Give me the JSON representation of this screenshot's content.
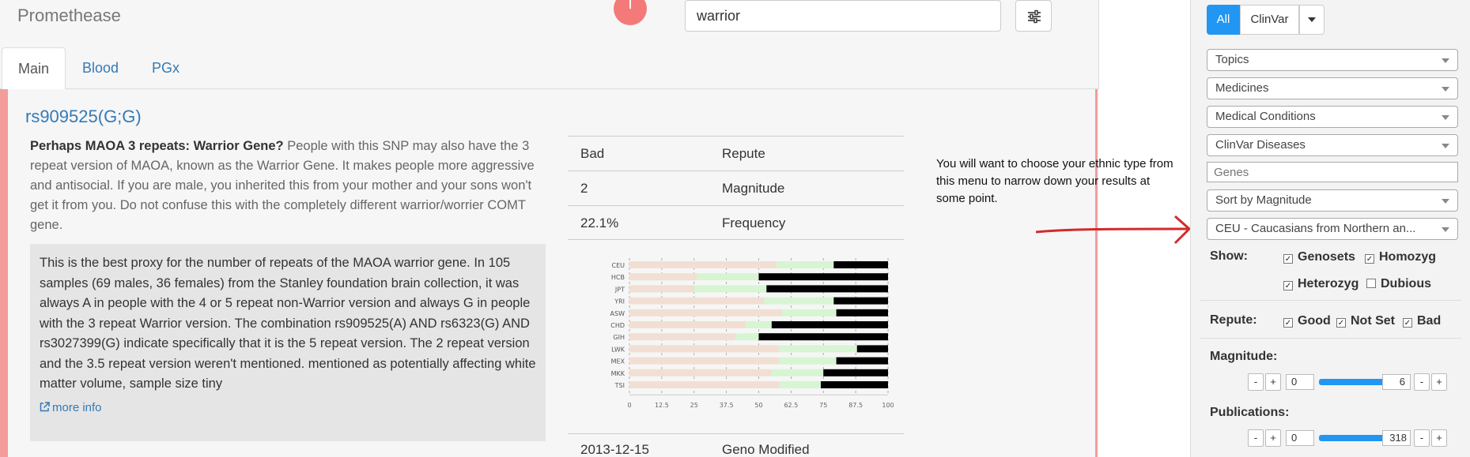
{
  "app": {
    "brand": "Promethease",
    "logo_letter": "T"
  },
  "search": {
    "value": "warrior"
  },
  "tabs": [
    {
      "label": "Main",
      "active": true
    },
    {
      "label": "Blood",
      "active": false
    },
    {
      "label": "PGx",
      "active": false
    }
  ],
  "snp": {
    "title": "rs909525(G;G)",
    "summary_bold": "Perhaps MAOA 3 repeats: Warrior Gene?",
    "summary_text": " People with this SNP may also have the 3 repeat version of MAOA, known as the Warrior Gene. It makes people more aggressive and antisocial. If you are male, you inherited this from your mother and your sons won't get it from you. Do not confuse this with the completely different warrior/worrier COMT gene.",
    "detail": "This is the best proxy for the number of repeats of the MAOA warrior gene. In 105 samples (69 males, 36 females) from the Stanley foundation brain collection, it was always A in people with the 4 or 5 repeat non-Warrior version and always G in people with the 3 repeat Warrior version. The combination rs909525(A) AND rs6323(G) AND rs3027399(G) indicate specifically that it is the 5 repeat version. The 2 repeat version and the 3.5 repeat version weren't mentioned. mentioned as potentially affecting white matter volume, sample size tiny",
    "more_info": "more info",
    "facts": [
      {
        "value": "Bad",
        "key": "Repute"
      },
      {
        "value": "2",
        "key": "Magnitude"
      },
      {
        "value": "22.1%",
        "key": "Frequency"
      }
    ],
    "geno_modified": {
      "value": "2013-12-15",
      "key": "Geno Modified"
    }
  },
  "chart_data": {
    "type": "bar",
    "orientation": "horizontal",
    "stacked": true,
    "categories": [
      "CEU",
      "HCB",
      "JPT",
      "YRI",
      "ASW",
      "CHD",
      "GIH",
      "LWK",
      "MEX",
      "MKK",
      "TSI"
    ],
    "series": [
      {
        "color": "#f2dfd3",
        "values": [
          57,
          26,
          25,
          52,
          59,
          45,
          41,
          58,
          58,
          55,
          58
        ]
      },
      {
        "color": "#d7f5d3",
        "values": [
          22,
          24,
          28,
          27,
          21,
          10,
          9,
          30,
          22,
          20,
          16
        ]
      },
      {
        "color": "#000000",
        "values": [
          21,
          50,
          47,
          21,
          20,
          45,
          50,
          12,
          20,
          25,
          26
        ]
      }
    ],
    "x_ticks": [
      "0",
      "12.5",
      "25",
      "37.5",
      "50",
      "62.5",
      "75",
      "87.5",
      "100"
    ],
    "xlim": [
      0,
      100
    ],
    "grid": true
  },
  "annotation": {
    "text": "You will want to choose your ethnic type from this menu to narrow down your results at some point."
  },
  "sidebar": {
    "toggle_all": "All",
    "toggle_clinvar": "ClinVar",
    "dropdowns": [
      "Topics",
      "Medicines",
      "Medical Conditions",
      "ClinVar Diseases"
    ],
    "genes_placeholder": "Genes",
    "sort": "Sort by Magnitude",
    "population": "CEU - Caucasians from Northern an...",
    "show_label": "Show:",
    "show_options": [
      {
        "label": "Genosets",
        "checked": true
      },
      {
        "label": "Homozyg",
        "checked": true
      },
      {
        "label": "Heterozyg",
        "checked": true
      },
      {
        "label": "Dubious",
        "checked": false
      }
    ],
    "repute_label": "Repute:",
    "repute_options": [
      {
        "label": "Good",
        "checked": true
      },
      {
        "label": "Not Set",
        "checked": true
      },
      {
        "label": "Bad",
        "checked": true
      }
    ],
    "magnitude_label": "Magnitude:",
    "magnitude_min": "0",
    "magnitude_max": "6",
    "publications_label": "Publications:",
    "publications_min": "0",
    "publications_max": "318",
    "minus": "-",
    "plus": "+"
  }
}
